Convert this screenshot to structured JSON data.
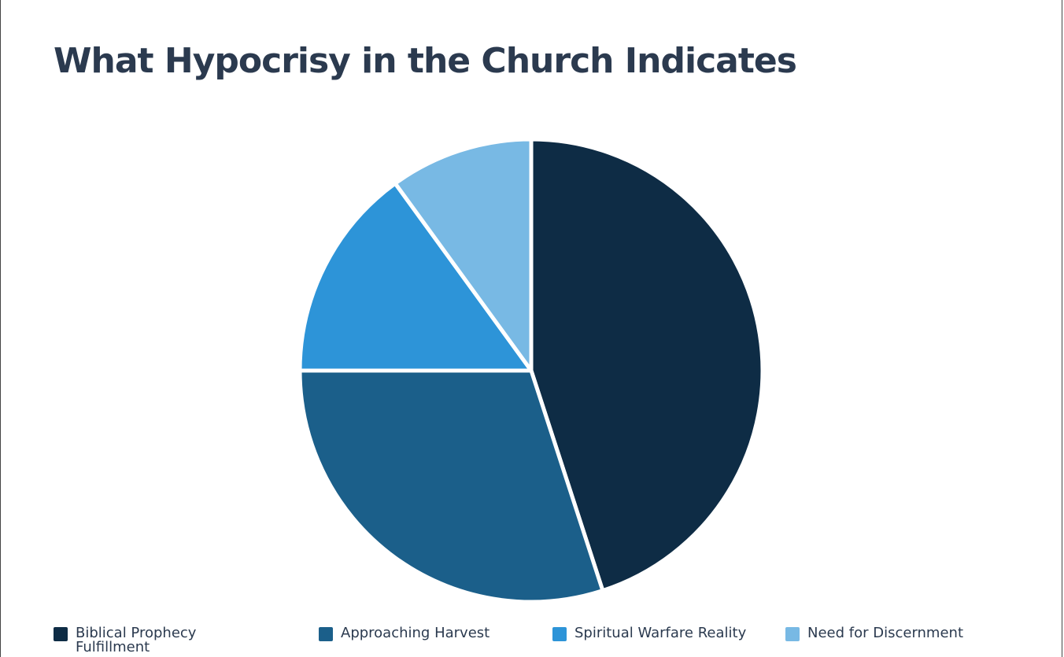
{
  "title": "What Hypocrisy in the Church Indicates",
  "chart_data": {
    "type": "pie",
    "title": "What Hypocrisy in the Church Indicates",
    "legend_position": "bottom",
    "series": [
      {
        "name": "Biblical Prophecy Fulfillment",
        "value": 45,
        "color": "#0e2c45"
      },
      {
        "name": "Approaching Harvest",
        "value": 30,
        "color": "#1b5f8a"
      },
      {
        "name": "Spiritual Warfare Reality",
        "value": 15,
        "color": "#2d94d8"
      },
      {
        "name": "Need for Discernment",
        "value": 10,
        "color": "#78b9e4"
      }
    ]
  }
}
